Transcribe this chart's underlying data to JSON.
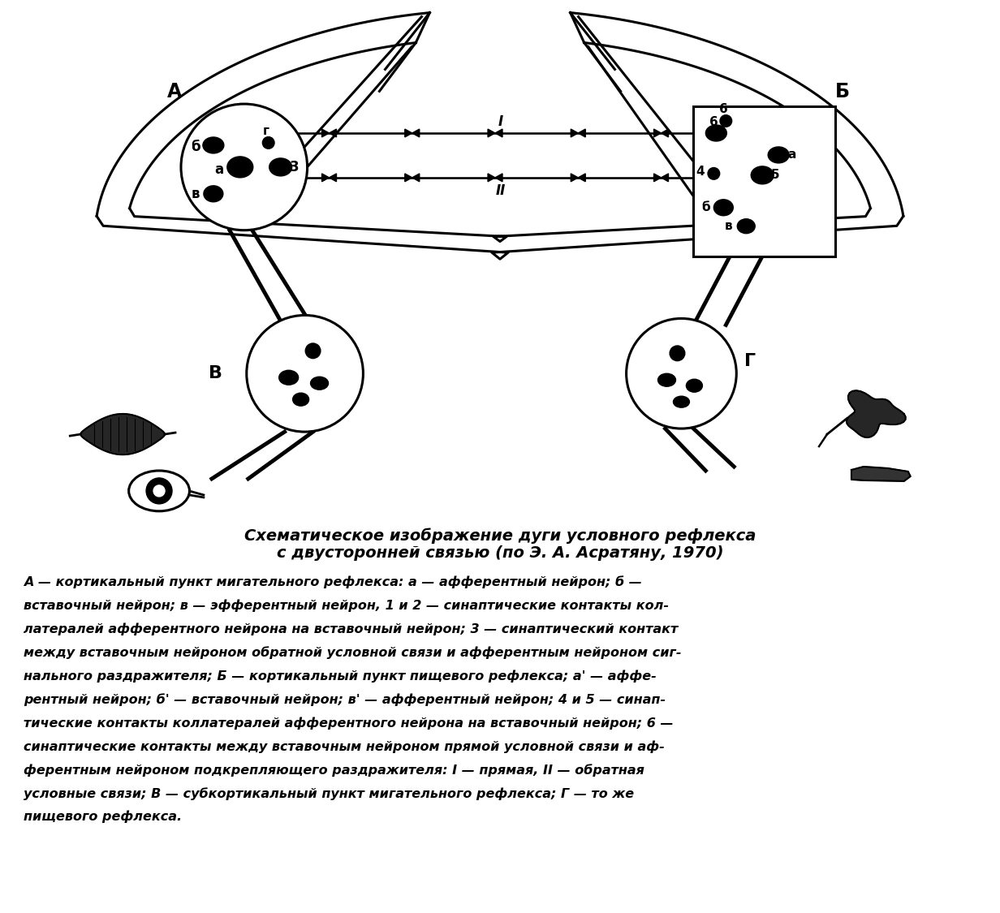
{
  "title_line1": "Схематическое изображение дуги условного рефлекса",
  "title_line2": "с двусторонней связью (по Э. А. Асратяну, 1970)",
  "caption_lines": [
    "А — кортикальный пункт мигательного рефлекса: а — афферентный нейрон; б —",
    "вставочный нейрон; в — эфферентный нейрон, 1 и 2 — синаптические контакты кол-",
    "латералей афферентного нейрона на вставочный нейрон; 3 — синаптический контакт",
    "между вставочным нейроном обратной условной связи и афферентным нейроном сиг-",
    "нального раздражителя; Б — кортикальный пункт пищевого рефлекса; а' — аффе-",
    "рентный нейрон; б' — вставочный нейрон; в' — афферентный нейрон; 4 и 5 — синап-",
    "тические контакты коллатералей афферентного нейрона на вставочный нейрон; 6 —",
    "синаптические контакты между вставочным нейроном прямой условной связи и аф-",
    "ферентным нейроном подкрепляющего раздражителя: I — прямая, II — обратная",
    "условные связи; В — субкортикальный пункт мигательного рефлекса; Г — то же",
    "пищевого рефлекса."
  ],
  "bg_color": "#ffffff"
}
